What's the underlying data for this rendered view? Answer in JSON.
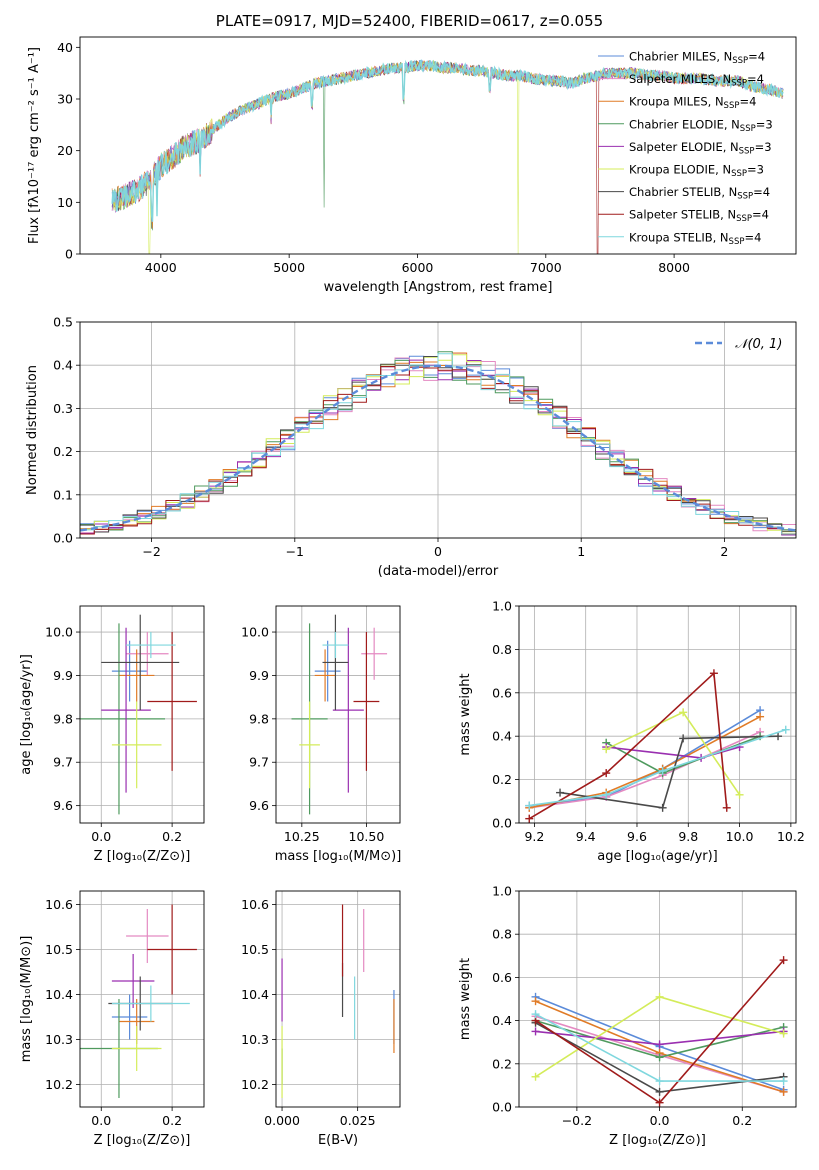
{
  "figure": {
    "title": "PLATE=0917, MJD=52400, FIBERID=0617, z=0.055"
  },
  "legend": {
    "models": [
      {
        "label": "Chabrier MILES, N",
        "sub": "SSP",
        "suffix": "=4",
        "color": "#5b8bd9"
      },
      {
        "label": "Salpeter MILES, N",
        "sub": "SSP",
        "suffix": "=4",
        "color": "#e48ac2"
      },
      {
        "label": "Kroupa MILES, N",
        "sub": "SSP",
        "suffix": "=4",
        "color": "#e07b27"
      },
      {
        "label": "Chabrier ELODIE, N",
        "sub": "SSP",
        "suffix": "=3",
        "color": "#4f9a5e"
      },
      {
        "label": "Salpeter ELODIE, N",
        "sub": "SSP",
        "suffix": "=3",
        "color": "#9a2fb0"
      },
      {
        "label": "Kroupa ELODIE, N",
        "sub": "SSP",
        "suffix": "=3",
        "color": "#d4ec5a"
      },
      {
        "label": "Chabrier STELIB, N",
        "sub": "SSP",
        "suffix": "=4",
        "color": "#4a4a4a"
      },
      {
        "label": "Salpeter STELIB, N",
        "sub": "SSP",
        "suffix": "=4",
        "color": "#a01b1b"
      },
      {
        "label": "Kroupa STELIB, N",
        "sub": "SSP",
        "suffix": "=4",
        "color": "#7fd7de"
      }
    ],
    "normal_label": "𝒩(0, 1)",
    "normal_color": "#5b8bd9"
  },
  "chart_data": [
    {
      "id": "spectrum",
      "type": "line",
      "xlabel": "wavelength [Angstrom, rest frame]",
      "ylabel": "Flux [fλ10⁻¹⁷ erg cm⁻² s⁻¹ A⁻¹]",
      "xlim": [
        3370,
        8950
      ],
      "ylim": [
        0,
        42
      ],
      "xticks": [
        4000,
        5000,
        6000,
        7000,
        8000
      ],
      "yticks": [
        0,
        10,
        20,
        30,
        40
      ],
      "grid": false,
      "legend_position": "right",
      "continuum": {
        "x": [
          3600,
          3700,
          3800,
          3900,
          4000,
          4100,
          4200,
          4300,
          4400,
          4500,
          4600,
          4700,
          4800,
          4900,
          5000,
          5100,
          5200,
          5300,
          5400,
          5500,
          5600,
          5700,
          5800,
          5900,
          6000,
          6100,
          6200,
          6300,
          6400,
          6500,
          6600,
          6700,
          6800,
          6900,
          7000,
          7100,
          7200,
          7300,
          7400,
          7500,
          7600,
          7700,
          7800,
          7900,
          8000,
          8100,
          8200,
          8300,
          8400,
          8500,
          8600,
          8700,
          8800,
          8850
        ],
        "y": [
          10,
          11,
          12,
          14,
          17,
          19,
          21,
          22,
          24,
          26,
          27.5,
          28.5,
          29.5,
          30.5,
          31,
          32,
          33,
          33.5,
          34,
          34.5,
          35,
          35.5,
          36,
          36,
          36.5,
          36.5,
          36,
          36,
          35.5,
          35.5,
          35,
          34.5,
          34.5,
          34,
          33.5,
          33.5,
          33,
          34,
          34.5,
          35,
          35,
          35,
          34.5,
          34.5,
          34,
          34,
          34,
          33.5,
          33.5,
          33.5,
          32.5,
          32,
          31.5,
          31
        ]
      }
    },
    {
      "id": "residuals",
      "type": "bar",
      "xlabel": "(data-model)/error",
      "ylabel": "Normed distribution",
      "xlim": [
        -2.5,
        2.5
      ],
      "ylim": [
        0,
        0.5
      ],
      "xticks": [
        -2,
        -1,
        0,
        1,
        2
      ],
      "yticks": [
        0.0,
        0.1,
        0.2,
        0.3,
        0.4,
        0.5
      ],
      "bin_width": 0.1,
      "grid": true,
      "legend_position": "top-right"
    },
    {
      "id": "age-vs-Z",
      "type": "scatter",
      "xlabel": "Z [log₁₀(Z/Z⊙)]",
      "ylabel": "age  [log₁₀(age/yr)]",
      "xlim": [
        -0.06,
        0.29
      ],
      "ylim": [
        9.56,
        10.06
      ],
      "xticks": [
        0.0,
        0.2
      ],
      "yticks": [
        9.6,
        9.7,
        9.8,
        9.9,
        10.0
      ],
      "grid": true,
      "points": [
        {
          "x": 0.08,
          "y": 9.91,
          "xerr": 0.05,
          "yerr": 0.07
        },
        {
          "x": 0.13,
          "y": 9.95,
          "xerr": 0.06,
          "yerr": 0.05
        },
        {
          "x": 0.1,
          "y": 9.9,
          "xerr": 0.05,
          "yerr": 0.06
        },
        {
          "x": 0.05,
          "y": 9.8,
          "xerr": 0.13,
          "yerr": 0.22
        },
        {
          "x": 0.07,
          "y": 9.82,
          "xerr": 0.07,
          "yerr": 0.19
        },
        {
          "x": 0.1,
          "y": 9.74,
          "xerr": 0.07,
          "yerr": 0.1
        },
        {
          "x": 0.11,
          "y": 9.93,
          "xerr": 0.11,
          "yerr": 0.11
        },
        {
          "x": 0.2,
          "y": 9.84,
          "xerr": 0.07,
          "yerr": 0.16
        },
        {
          "x": 0.14,
          "y": 9.97,
          "xerr": 0.07,
          "yerr": 0.03
        }
      ]
    },
    {
      "id": "age-vs-mass",
      "type": "scatter",
      "xlabel": "mass [log₁₀(M/M⊙)]",
      "ylabel": "",
      "xlim": [
        10.15,
        10.63
      ],
      "ylim": [
        9.56,
        10.06
      ],
      "xticks": [
        10.25,
        10.5
      ],
      "yticks": [
        9.6,
        9.7,
        9.8,
        9.9,
        10.0
      ],
      "grid": true,
      "points": [
        {
          "x": 10.35,
          "y": 9.91,
          "xerr": 0.05,
          "yerr": 0.07
        },
        {
          "x": 10.53,
          "y": 9.95,
          "xerr": 0.05,
          "yerr": 0.06
        },
        {
          "x": 10.34,
          "y": 9.9,
          "xerr": 0.04,
          "yerr": 0.06
        },
        {
          "x": 10.28,
          "y": 9.8,
          "xerr": 0.07,
          "yerr": 0.22
        },
        {
          "x": 10.43,
          "y": 9.82,
          "xerr": 0.06,
          "yerr": 0.19
        },
        {
          "x": 10.28,
          "y": 9.74,
          "xerr": 0.04,
          "yerr": 0.1
        },
        {
          "x": 10.38,
          "y": 9.93,
          "xerr": 0.05,
          "yerr": 0.11
        },
        {
          "x": 10.5,
          "y": 9.84,
          "xerr": 0.05,
          "yerr": 0.16
        },
        {
          "x": 10.38,
          "y": 9.97,
          "xerr": 0.05,
          "yerr": 0.03
        }
      ]
    },
    {
      "id": "weight-vs-age",
      "type": "line",
      "xlabel": "age  [log₁₀(age/yr)]",
      "ylabel": "mass weight",
      "xlim": [
        9.14,
        10.22
      ],
      "ylim": [
        0,
        1.0
      ],
      "xticks": [
        9.2,
        9.4,
        9.6,
        9.8,
        10.0,
        10.2
      ],
      "yticks": [
        0.0,
        0.2,
        0.4,
        0.6,
        0.8,
        1.0
      ],
      "grid": true,
      "series": [
        {
          "x": [
            9.18,
            9.48,
            9.7,
            10.08
          ],
          "y": [
            0.08,
            0.12,
            0.25,
            0.52
          ]
        },
        {
          "x": [
            9.18,
            9.48,
            9.7,
            10.08
          ],
          "y": [
            0.07,
            0.12,
            0.22,
            0.42
          ]
        },
        {
          "x": [
            9.18,
            9.48,
            9.7,
            10.08
          ],
          "y": [
            0.07,
            0.14,
            0.25,
            0.49
          ]
        },
        {
          "x": [
            9.48,
            9.7,
            10.08
          ],
          "y": [
            0.37,
            0.23,
            0.4
          ]
        },
        {
          "x": [
            9.48,
            9.85,
            10.0
          ],
          "y": [
            0.35,
            0.3,
            0.35
          ]
        },
        {
          "x": [
            9.48,
            9.78,
            10.0
          ],
          "y": [
            0.34,
            0.51,
            0.13
          ]
        },
        {
          "x": [
            9.3,
            9.7,
            9.78,
            10.15
          ],
          "y": [
            0.14,
            0.07,
            0.39,
            0.4
          ]
        },
        {
          "x": [
            9.18,
            9.48,
            9.9,
            9.95
          ],
          "y": [
            0.02,
            0.23,
            0.69,
            0.07
          ]
        },
        {
          "x": [
            9.18,
            9.48,
            9.7,
            10.18
          ],
          "y": [
            0.08,
            0.13,
            0.24,
            0.43
          ]
        }
      ]
    },
    {
      "id": "mass-vs-Z",
      "type": "scatter",
      "xlabel": "Z [log₁₀(Z/Z⊙)]",
      "ylabel": "mass [log₁₀(M/M⊙)]",
      "xlim": [
        -0.06,
        0.29
      ],
      "ylim": [
        10.15,
        10.63
      ],
      "xticks": [
        0.0,
        0.2
      ],
      "yticks": [
        10.2,
        10.3,
        10.4,
        10.5,
        10.6
      ],
      "grid": true,
      "points": [
        {
          "x": 0.08,
          "y": 10.35,
          "xerr": 0.05,
          "yerr": 0.05
        },
        {
          "x": 0.13,
          "y": 10.53,
          "xerr": 0.06,
          "yerr": 0.06
        },
        {
          "x": 0.1,
          "y": 10.34,
          "xerr": 0.05,
          "yerr": 0.05
        },
        {
          "x": 0.05,
          "y": 10.28,
          "xerr": 0.11,
          "yerr": 0.11
        },
        {
          "x": 0.09,
          "y": 10.43,
          "xerr": 0.06,
          "yerr": 0.06
        },
        {
          "x": 0.1,
          "y": 10.28,
          "xerr": 0.07,
          "yerr": 0.05
        },
        {
          "x": 0.11,
          "y": 10.38,
          "xerr": 0.09,
          "yerr": 0.06
        },
        {
          "x": 0.2,
          "y": 10.5,
          "xerr": 0.07,
          "yerr": 0.1
        },
        {
          "x": 0.14,
          "y": 10.38,
          "xerr": 0.11,
          "yerr": 0.04
        }
      ]
    },
    {
      "id": "mass-vs-ebv",
      "type": "scatter",
      "xlabel": "E(B-V)",
      "ylabel": "",
      "xlim": [
        -0.002,
        0.039
      ],
      "ylim": [
        10.15,
        10.63
      ],
      "xticks": [
        0.0,
        0.025
      ],
      "xticklabels": [
        "0.000",
        "0.025"
      ],
      "yticks": [
        10.2,
        10.3,
        10.4,
        10.5,
        10.6
      ],
      "grid": true,
      "points": [
        {
          "x": 0.037,
          "y": 10.35,
          "xerr": 0,
          "yerr": 0.06
        },
        {
          "x": 0.027,
          "y": 10.52,
          "xerr": 0,
          "yerr": 0.07
        },
        {
          "x": 0.037,
          "y": 10.33,
          "xerr": 0,
          "yerr": 0.06
        },
        {
          "x": 0.0,
          "y": 10.24,
          "xerr": 0,
          "yerr": 0.04
        },
        {
          "x": 0.0,
          "y": 10.41,
          "xerr": 0,
          "yerr": 0.07
        },
        {
          "x": 0.0,
          "y": 10.25,
          "xerr": 0,
          "yerr": 0.08
        },
        {
          "x": 0.02,
          "y": 10.41,
          "xerr": 0,
          "yerr": 0.06
        },
        {
          "x": 0.02,
          "y": 10.52,
          "xerr": 0,
          "yerr": 0.08
        },
        {
          "x": 0.024,
          "y": 10.37,
          "xerr": 0,
          "yerr": 0.07
        }
      ]
    },
    {
      "id": "weight-vs-Z",
      "type": "line",
      "xlabel": "Z [log₁₀(Z/Z⊙)]",
      "ylabel": "mass weight",
      "xlim": [
        -0.34,
        0.33
      ],
      "ylim": [
        0,
        1.0
      ],
      "xticks": [
        -0.2,
        0.0,
        0.2
      ],
      "yticks": [
        0.0,
        0.2,
        0.4,
        0.6,
        0.8,
        1.0
      ],
      "grid": true,
      "series": [
        {
          "x": [
            -0.3,
            0.0,
            0.3
          ],
          "y": [
            0.51,
            0.28,
            0.08
          ]
        },
        {
          "x": [
            -0.3,
            0.0,
            0.3
          ],
          "y": [
            0.42,
            0.24,
            0.07
          ]
        },
        {
          "x": [
            -0.3,
            0.0,
            0.3
          ],
          "y": [
            0.49,
            0.25,
            0.07
          ]
        },
        {
          "x": [
            -0.3,
            0.0,
            0.3
          ],
          "y": [
            0.4,
            0.23,
            0.37
          ]
        },
        {
          "x": [
            -0.3,
            0.0,
            0.3
          ],
          "y": [
            0.35,
            0.29,
            0.35
          ]
        },
        {
          "x": [
            -0.3,
            0.0,
            0.3
          ],
          "y": [
            0.14,
            0.51,
            0.34
          ]
        },
        {
          "x": [
            -0.3,
            0.0,
            0.3
          ],
          "y": [
            0.39,
            0.07,
            0.14
          ]
        },
        {
          "x": [
            -0.3,
            0.0,
            0.3
          ],
          "y": [
            0.4,
            0.02,
            0.68
          ]
        },
        {
          "x": [
            -0.3,
            0.0,
            0.3
          ],
          "y": [
            0.43,
            0.12,
            0.12
          ]
        }
      ]
    }
  ]
}
